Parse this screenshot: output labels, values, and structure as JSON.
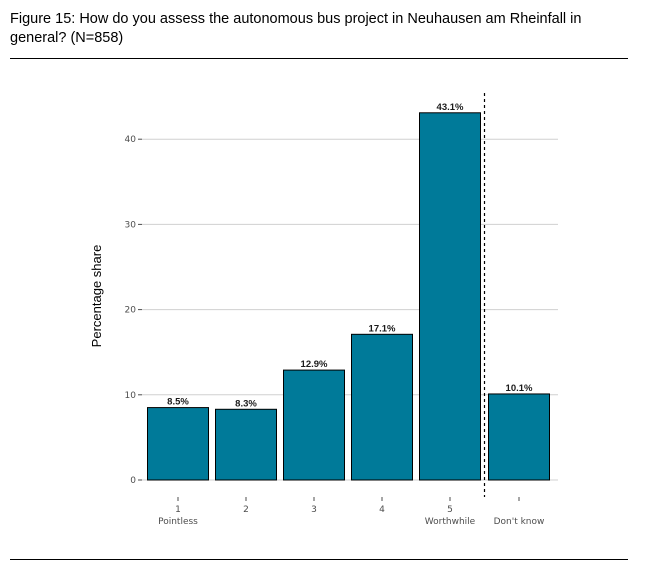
{
  "figure": {
    "title": "Figure 15: How do you assess the autonomous bus project in Neuhausen am Rheinfall in general? (N=858)"
  },
  "chart_data": {
    "type": "bar",
    "categories": [
      "1",
      "2",
      "3",
      "4",
      "5",
      "Don't know"
    ],
    "category_sublabels": [
      "Pointless",
      "",
      "",
      "",
      "Worthwhile",
      ""
    ],
    "values": [
      8.5,
      8.3,
      12.9,
      17.1,
      43.1,
      10.1
    ],
    "data_labels": [
      "8.5%",
      "8.3%",
      "12.9%",
      "17.1%",
      "43.1%",
      "10.1%"
    ],
    "ylabel": "Percentage share",
    "xlabel": "",
    "ylim": [
      0,
      45
    ],
    "yticks": [
      0,
      10,
      20,
      30,
      40
    ],
    "grid": "horizontal",
    "separator": "dashed vertical line between 5 and Don't know",
    "colors": {
      "bar": "#007a99",
      "bar_outline": "#000000",
      "grid": "#d0d0d0"
    }
  }
}
